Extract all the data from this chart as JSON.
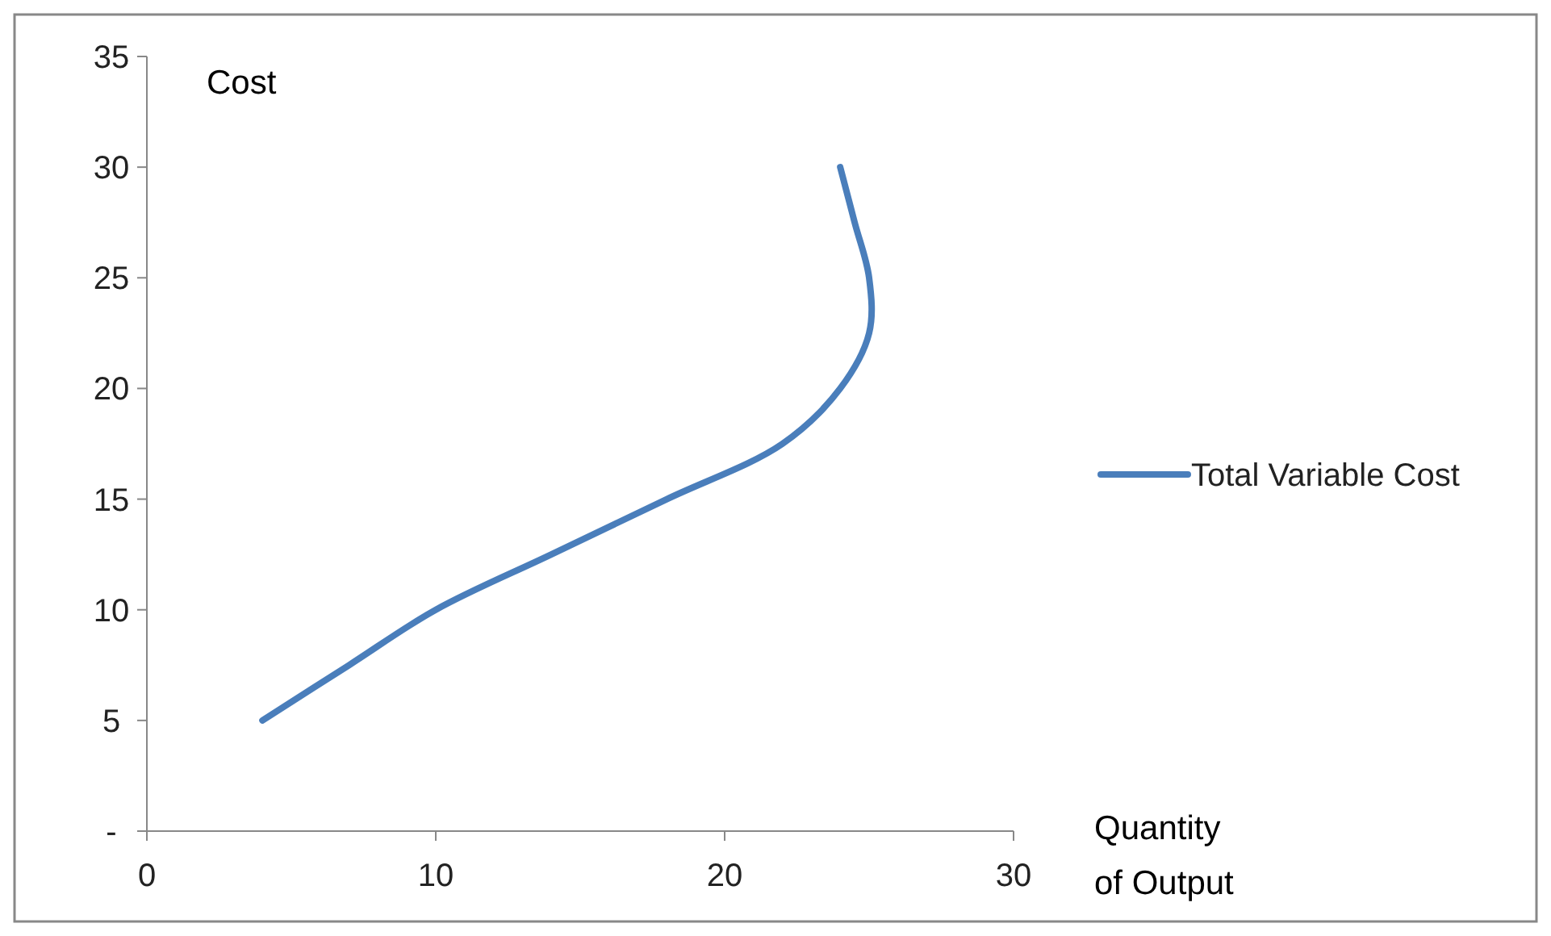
{
  "chart_data": {
    "type": "line",
    "xlabel": "Quantity of Output",
    "ylabel": "Cost",
    "xlim": [
      0,
      30
    ],
    "xticks": [
      0,
      10,
      20,
      30
    ],
    "ylim": [
      0,
      35
    ],
    "yticks": [
      {
        "value": 0,
        "label": "-"
      },
      5,
      10,
      15,
      20,
      25,
      30,
      35
    ],
    "legend": "right",
    "grid": false,
    "marker": "none",
    "line_style": "solid",
    "series": [
      {
        "name": "Total Variable Cost",
        "color": "#4a7ebb",
        "x": [
          4,
          7,
          10,
          14,
          18,
          22,
          24,
          25,
          25,
          24.5,
          24
        ],
        "values": [
          5,
          7.5,
          10,
          12.5,
          15,
          17.5,
          20,
          22.5,
          25,
          27.5,
          30
        ]
      }
    ]
  }
}
